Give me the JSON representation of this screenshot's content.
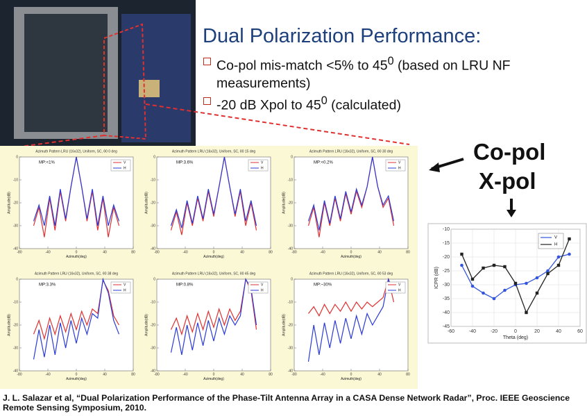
{
  "header": {
    "title": "Dual Polarization Performance:",
    "bullets": [
      {
        "text": "Co-pol mis-match  <5% to 45",
        "sup": "0",
        "rest": " (based on LRU NF measurements)"
      },
      {
        "text": "-20 dB Xpol to 45",
        "sup": "0",
        "rest": " (calculated)"
      }
    ]
  },
  "labels": {
    "copol": "Co-pol",
    "xpol": "X-pol"
  },
  "patterns": {
    "xlabel": "Azimuth(deg)",
    "ylabel": "Amplitude(dB)",
    "xlim": [
      -80,
      80
    ],
    "ylim": [
      -40,
      0
    ],
    "xticks": [
      -80,
      -40,
      0,
      40,
      80
    ],
    "yticks": [
      0,
      -10,
      -20,
      -30,
      -40
    ],
    "x": [
      -60,
      -52.5,
      -45,
      -37.5,
      -30,
      -22.5,
      -15,
      -7.5,
      0,
      7.5,
      15,
      22.5,
      30,
      37.5,
      45,
      52.5,
      60
    ],
    "plots": [
      {
        "title": "Azimuth Pattern LRU (16x32), Uniform, SC, θ0 0 deg",
        "mp": "MP:<1%",
        "series": [
          {
            "name": "V",
            "color": "#e03030",
            "values": [
              -30,
              -22,
              -35,
              -18,
              -32,
              -15,
              -28,
              -13,
              0,
              -13,
              -28,
              -15,
              -32,
              -18,
              -35,
              -22,
              -30
            ]
          },
          {
            "name": "H",
            "color": "#2a3ad8",
            "values": [
              -28,
              -21,
              -30,
              -17,
              -30,
              -14,
              -27,
              -13,
              0,
              -13,
              -27,
              -14,
              -30,
              -17,
              -30,
              -21,
              -28
            ]
          }
        ]
      },
      {
        "title": "Azimuth Pattern LRU (16x32), Uniform, SC, θ0 15 deg",
        "mp": "MP:3.6%",
        "series": [
          {
            "name": "V",
            "color": "#e03030",
            "values": [
              -32,
              -24,
              -34,
              -20,
              -30,
              -18,
              -28,
              -15,
              -26,
              -13,
              0,
              -13,
              -26,
              -15,
              -30,
              -20,
              -32
            ]
          },
          {
            "name": "H",
            "color": "#2a3ad8",
            "values": [
              -30,
              -23,
              -31,
              -19,
              -29,
              -17,
              -27,
              -14,
              -25,
              -13,
              0,
              -13,
              -25,
              -14,
              -28,
              -19,
              -30
            ]
          }
        ]
      },
      {
        "title": "Azimuth Pattern LRU (16x32), Uniform, SC, θ0 30 deg",
        "mp": "MP:<0.2%",
        "series": [
          {
            "name": "V",
            "color": "#e03030",
            "values": [
              -30,
              -22,
              -35,
              -20,
              -30,
              -18,
              -28,
              -16,
              -25,
              -15,
              -22,
              -13,
              0,
              -13,
              -22,
              -18,
              -30
            ]
          },
          {
            "name": "H",
            "color": "#2a3ad8",
            "values": [
              -28,
              -21,
              -32,
              -19,
              -29,
              -17,
              -27,
              -15,
              -24,
              -14,
              -21,
              -13,
              0,
              -13,
              -21,
              -17,
              -28
            ]
          }
        ]
      },
      {
        "title": "Azimuth Pattern LRU (16x32), Uniform, SC, θ0 38 deg",
        "mp": "MP:3.3%",
        "series": [
          {
            "name": "V",
            "color": "#e03030",
            "values": [
              -24,
              -18,
              -26,
              -17,
              -24,
              -16,
              -23,
              -15,
              -22,
              -14,
              -20,
              -13,
              -15,
              -0.5,
              -5,
              -16,
              -20
            ]
          },
          {
            "name": "H",
            "color": "#2a3ad8",
            "values": [
              -35,
              -22,
              -34,
              -20,
              -33,
              -19,
              -30,
              -18,
              -28,
              -17,
              -24,
              -15,
              -17,
              0,
              -6,
              -18,
              -24
            ]
          }
        ]
      },
      {
        "title": "Azimuth Pattern LRU (16x32), Uniform, SC, θ0 45 deg",
        "mp": "MP:0.8%",
        "series": [
          {
            "name": "V",
            "color": "#e03030",
            "values": [
              -22,
              -17,
              -24,
              -16,
              -23,
              -15,
              -22,
              -14,
              -21,
              -13,
              -20,
              -13,
              -18,
              -14,
              0,
              -5,
              -22
            ]
          },
          {
            "name": "H",
            "color": "#2a3ad8",
            "values": [
              -32,
              -21,
              -33,
              -20,
              -31,
              -19,
              -29,
              -18,
              -27,
              -17,
              -24,
              -16,
              -20,
              -16,
              0,
              -4,
              -20
            ]
          }
        ]
      },
      {
        "title": "Azimuth Pattern LRU (16x32), Uniform, SC, θ0 53 deg",
        "mp": "MP:~30%",
        "series": [
          {
            "name": "V",
            "color": "#e03030",
            "values": [
              -15,
              -12,
              -16,
              -11,
              -15,
              -11,
              -14,
              -10,
              -14,
              -10,
              -13,
              -10,
              -12,
              -10,
              -8,
              0,
              -10
            ]
          },
          {
            "name": "H",
            "color": "#2a3ad8",
            "values": [
              -36,
              -20,
              -33,
              -19,
              -30,
              -18,
              -28,
              -17,
              -26,
              -16,
              -24,
              -15,
              -20,
              -16,
              -12,
              0,
              -6
            ]
          }
        ]
      }
    ]
  },
  "chart_data": {
    "type": "line",
    "xlabel": "Theta  (deg)",
    "ylabel": "ICPR (dB)",
    "xlim": [
      -60,
      60
    ],
    "ylim": [
      -45,
      -10
    ],
    "xticks": [
      -60,
      -40,
      -20,
      0,
      20,
      40,
      60
    ],
    "yticks": [
      -45,
      -40,
      -35,
      -30,
      -25,
      -20,
      -15,
      -10
    ],
    "grid": true,
    "x": [
      -50,
      -40,
      -30,
      -20,
      -10,
      0,
      10,
      20,
      30,
      40,
      50
    ],
    "series": [
      {
        "name": "V",
        "color": "#3355dd",
        "marker": "circle",
        "values": [
          -23,
          -30.5,
          -33,
          -35,
          -32,
          -30,
          -29.5,
          -27.5,
          -25,
          -20,
          -19
        ]
      },
      {
        "name": "H",
        "color": "#222222",
        "marker": "square",
        "values": [
          -19,
          -28,
          -24,
          -23,
          -23.5,
          -29.5,
          -40,
          -33,
          -26,
          -23,
          -13.5
        ]
      }
    ]
  },
  "citation": "J. L. Salazar et al, “Dual Polarization Performance of the Phase-Tilt Antenna Array in a CASA Dense Network Radar”, Proc. IEEE Geoscience Remote Sensing Symposium, 2010."
}
